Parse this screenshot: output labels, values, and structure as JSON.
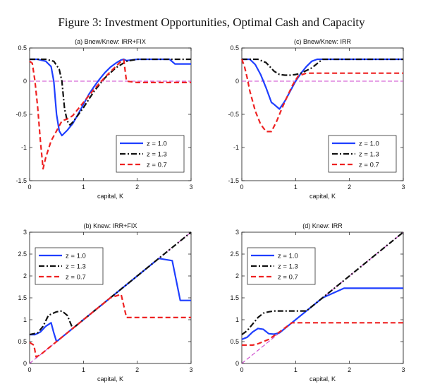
{
  "figure_title": "Figure 3: Investment Opportunities, Optimal Cash and Capacity",
  "chart_data": [
    {
      "type": "line",
      "title": "(a) Bnew/Knew: IRR+FIX",
      "xlabel": "capital, K",
      "ylabel": "",
      "xlim": [
        0,
        3
      ],
      "ylim": [
        -1.5,
        0.5
      ],
      "xticks": [
        "0",
        "1",
        "2",
        "3"
      ],
      "yticks": [
        "-1.5",
        "-1",
        "-0.5",
        "0",
        "0.5"
      ],
      "legend_position": "bottom-right",
      "reference_line": {
        "y": 0,
        "color": "#cc44cc"
      },
      "series": [
        {
          "name": "z = 1.0",
          "color": "#1f3fff",
          "dash": "solid",
          "x": [
            0,
            0.15,
            0.3,
            0.4,
            0.45,
            0.5,
            0.55,
            0.6,
            0.7,
            0.8,
            0.9,
            1.0,
            1.1,
            1.2,
            1.3,
            1.4,
            1.5,
            1.6,
            1.7,
            1.75,
            1.8,
            2.0,
            2.6,
            2.7,
            2.8,
            3.0
          ],
          "y": [
            0.33,
            0.33,
            0.3,
            0.22,
            0.0,
            -0.5,
            -0.75,
            -0.82,
            -0.74,
            -0.64,
            -0.5,
            -0.35,
            -0.2,
            -0.08,
            0.03,
            0.13,
            0.21,
            0.27,
            0.32,
            0.33,
            0.31,
            0.33,
            0.33,
            0.26,
            0.26,
            0.26
          ]
        },
        {
          "name": "z = 1.3",
          "color": "#111111",
          "dash": "dashdot",
          "x": [
            0,
            0.3,
            0.45,
            0.55,
            0.6,
            0.65,
            0.7,
            0.75,
            0.8,
            1.0,
            1.2,
            1.4,
            1.6,
            1.8,
            2.0,
            2.5,
            3.0
          ],
          "y": [
            0.33,
            0.33,
            0.3,
            0.18,
            0.0,
            -0.42,
            -0.6,
            -0.66,
            -0.62,
            -0.4,
            -0.15,
            0.05,
            0.2,
            0.3,
            0.33,
            0.33,
            0.33
          ]
        },
        {
          "name": "z = 0.7",
          "color": "#ee2222",
          "dash": "dashed",
          "x": [
            0,
            0.05,
            0.1,
            0.15,
            0.2,
            0.25,
            0.3,
            0.4,
            0.5,
            0.6,
            0.7,
            0.8,
            1.0,
            1.2,
            1.4,
            1.6,
            1.7,
            1.75,
            1.8,
            2.0,
            3.0
          ],
          "y": [
            0.3,
            0.27,
            0.0,
            -0.4,
            -0.9,
            -1.32,
            -1.15,
            -0.9,
            -0.75,
            -0.6,
            -0.57,
            -0.52,
            -0.32,
            -0.12,
            0.06,
            0.22,
            0.3,
            0.32,
            0.0,
            -0.02,
            -0.02
          ]
        }
      ]
    },
    {
      "type": "line",
      "title": "(c) Bnew/Knew: IRR",
      "xlabel": "capital, K",
      "ylabel": "",
      "xlim": [
        0,
        3
      ],
      "ylim": [
        -1.5,
        0.5
      ],
      "xticks": [
        "0",
        "1",
        "2",
        "3"
      ],
      "yticks": [
        "-1.5",
        "-1",
        "-0.5",
        "0",
        "0.5"
      ],
      "legend_position": "bottom-right",
      "reference_line": {
        "y": 0,
        "color": "#cc44cc"
      },
      "series": [
        {
          "name": "z = 1.0",
          "color": "#1f3fff",
          "dash": "solid",
          "x": [
            0,
            0.15,
            0.25,
            0.35,
            0.45,
            0.55,
            0.6,
            0.7,
            0.8,
            0.9,
            1.0,
            1.1,
            1.2,
            1.3,
            1.4,
            2.0,
            3.0
          ],
          "y": [
            0.33,
            0.33,
            0.25,
            0.1,
            -0.1,
            -0.32,
            -0.35,
            -0.42,
            -0.3,
            -0.15,
            0.0,
            0.12,
            0.22,
            0.3,
            0.33,
            0.33,
            0.33
          ]
        },
        {
          "name": "z = 1.3",
          "color": "#111111",
          "dash": "dashdot",
          "x": [
            0,
            0.3,
            0.45,
            0.6,
            0.7,
            0.8,
            0.9,
            1.0,
            1.1,
            1.3,
            1.5,
            2.0,
            3.0
          ],
          "y": [
            0.33,
            0.33,
            0.28,
            0.15,
            0.1,
            0.09,
            0.09,
            0.1,
            0.12,
            0.2,
            0.33,
            0.33,
            0.33
          ]
        },
        {
          "name": "z = 0.7",
          "color": "#ee2222",
          "dash": "dashed",
          "x": [
            0,
            0.05,
            0.1,
            0.15,
            0.25,
            0.35,
            0.45,
            0.55,
            0.65,
            0.75,
            0.85,
            0.95,
            1.05,
            1.2,
            2.0,
            3.0
          ],
          "y": [
            0.33,
            0.22,
            0.05,
            -0.15,
            -0.45,
            -0.65,
            -0.76,
            -0.76,
            -0.6,
            -0.4,
            -0.22,
            -0.05,
            0.08,
            0.12,
            0.12,
            0.12
          ]
        }
      ]
    },
    {
      "type": "line",
      "title": "(b) Knew: IRR+FIX",
      "xlabel": "capital, K",
      "ylabel": "",
      "xlim": [
        0,
        3
      ],
      "ylim": [
        0,
        3
      ],
      "xticks": [
        "0",
        "1",
        "2",
        "3"
      ],
      "yticks": [
        "0",
        "0.5",
        "1",
        "1.5",
        "2",
        "2.5",
        "3"
      ],
      "legend_position": "top-left",
      "reference_line": {
        "diagonal": true,
        "color": "#cc44cc"
      },
      "series": [
        {
          "name": "z = 1.0",
          "color": "#1f3fff",
          "dash": "solid",
          "x": [
            0,
            0.1,
            0.2,
            0.3,
            0.4,
            0.45,
            0.5,
            0.6,
            1.0,
            1.5,
            2.0,
            2.4,
            2.65,
            2.8,
            3.0
          ],
          "y": [
            0.66,
            0.66,
            0.72,
            0.85,
            0.93,
            0.7,
            0.5,
            0.6,
            1.0,
            1.5,
            2.0,
            2.4,
            2.35,
            1.44,
            1.44
          ]
        },
        {
          "name": "z = 1.3",
          "color": "#111111",
          "dash": "dashdot",
          "x": [
            0,
            0.15,
            0.25,
            0.35,
            0.5,
            0.6,
            0.7,
            0.8,
            1.0,
            1.5,
            2.0,
            2.5,
            3.0
          ],
          "y": [
            0.66,
            0.7,
            0.85,
            1.1,
            1.18,
            1.2,
            1.1,
            0.8,
            1.0,
            1.5,
            2.0,
            2.5,
            3.0
          ]
        },
        {
          "name": "z = 0.7",
          "color": "#ee2222",
          "dash": "dashed",
          "x": [
            0,
            0.08,
            0.12,
            0.2,
            0.5,
            1.0,
            1.5,
            1.7,
            1.8,
            2.0,
            3.0
          ],
          "y": [
            0.48,
            0.42,
            0.15,
            0.2,
            0.5,
            1.0,
            1.5,
            1.58,
            1.05,
            1.05,
            1.05
          ]
        }
      ]
    },
    {
      "type": "line",
      "title": "(d) Knew: IRR",
      "xlabel": "capital, K",
      "ylabel": "",
      "xlim": [
        0,
        3
      ],
      "ylim": [
        0,
        3
      ],
      "xticks": [
        "0",
        "1",
        "2",
        "3"
      ],
      "yticks": [
        "0",
        "0.5",
        "1",
        "1.5",
        "2",
        "2.5",
        "3"
      ],
      "legend_position": "top-left",
      "reference_line": {
        "diagonal": true,
        "color": "#cc44cc"
      },
      "series": [
        {
          "name": "z = 1.0",
          "color": "#1f3fff",
          "dash": "solid",
          "x": [
            0,
            0.1,
            0.2,
            0.3,
            0.4,
            0.5,
            0.6,
            0.7,
            1.0,
            1.5,
            1.9,
            2.0,
            3.0
          ],
          "y": [
            0.55,
            0.6,
            0.72,
            0.8,
            0.78,
            0.68,
            0.67,
            0.7,
            1.0,
            1.5,
            1.72,
            1.72,
            1.72
          ]
        },
        {
          "name": "z = 1.3",
          "color": "#111111",
          "dash": "dashdot",
          "x": [
            0,
            0.1,
            0.2,
            0.3,
            0.4,
            0.5,
            0.6,
            0.8,
            1.0,
            1.2,
            1.5,
            2.0,
            2.5,
            3.0
          ],
          "y": [
            0.66,
            0.75,
            0.9,
            1.05,
            1.15,
            1.18,
            1.2,
            1.2,
            1.2,
            1.2,
            1.5,
            2.0,
            2.5,
            3.0
          ]
        },
        {
          "name": "z = 0.7",
          "color": "#ee2222",
          "dash": "dashed",
          "x": [
            0,
            0.1,
            0.2,
            0.3,
            0.5,
            0.7,
            0.93,
            1.0,
            2.0,
            3.0
          ],
          "y": [
            0.42,
            0.42,
            0.42,
            0.45,
            0.55,
            0.72,
            0.93,
            0.93,
            0.93,
            0.93
          ]
        }
      ]
    }
  ]
}
